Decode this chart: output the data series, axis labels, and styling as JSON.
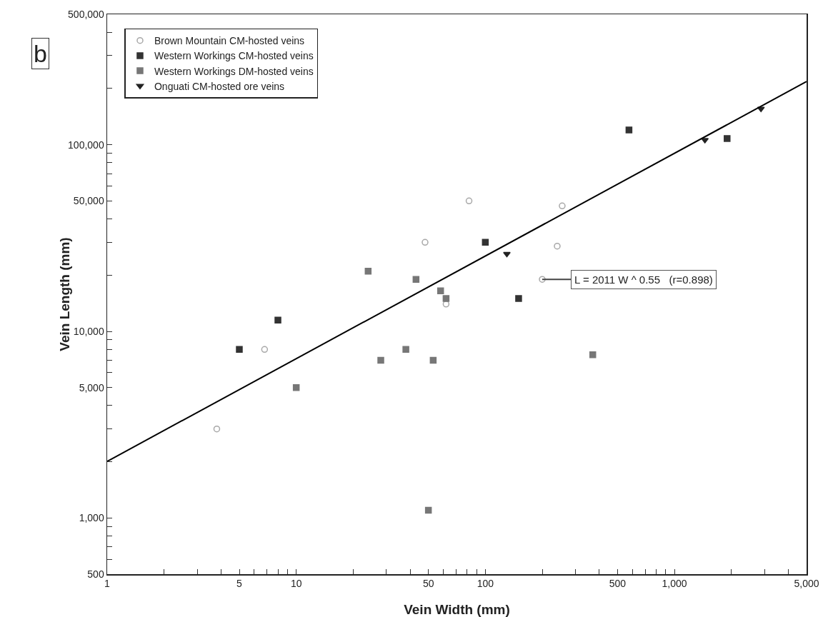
{
  "chart_data": {
    "type": "scatter",
    "xlabel": "Vein Width (mm)",
    "ylabel": "Vein Length (mm)",
    "log": "xy",
    "grid": false,
    "legend": "top left",
    "xlim": [
      1,
      5000
    ],
    "xticks": [
      1,
      {
        "value": 2,
        "label": null
      },
      {
        "value": 3,
        "label": null
      },
      {
        "value": 4,
        "label": null
      },
      {
        "value": 5,
        "label": "5"
      },
      {
        "value": 6,
        "label": null
      },
      {
        "value": 7,
        "label": null
      },
      {
        "value": 8,
        "label": null
      },
      {
        "value": 9,
        "label": null
      },
      {
        "value": 10,
        "label": "10"
      },
      {
        "value": 20,
        "label": null
      },
      {
        "value": 30,
        "label": null
      },
      {
        "value": 40,
        "label": null
      },
      {
        "value": 50,
        "label": "50"
      },
      {
        "value": 60,
        "label": null
      },
      {
        "value": 70,
        "label": null
      },
      {
        "value": 80,
        "label": null
      },
      {
        "value": 90,
        "label": null
      },
      {
        "value": 100,
        "label": "100"
      },
      {
        "value": 200,
        "label": null
      },
      {
        "value": 300,
        "label": null
      },
      {
        "value": 400,
        "label": null
      },
      {
        "value": 500,
        "label": "500"
      },
      {
        "value": 600,
        "label": null
      },
      {
        "value": 700,
        "label": null
      },
      {
        "value": 800,
        "label": null
      },
      {
        "value": 900,
        "label": null
      },
      {
        "value": 1000,
        "label": "1,000"
      },
      {
        "value": 2000,
        "label": null
      },
      {
        "value": 3000,
        "label": null
      },
      {
        "value": 4000,
        "label": null
      },
      {
        "value": 5000,
        "label": "5,000"
      }
    ],
    "ylim": [
      500,
      500000
    ],
    "yticks": [
      500,
      {
        "value": 600,
        "label": null
      },
      {
        "value": 700,
        "label": null
      },
      {
        "value": 800,
        "label": null
      },
      {
        "value": 900,
        "label": null
      },
      {
        "value": 1000,
        "label": "1,000"
      },
      {
        "value": 2000,
        "label": null
      },
      {
        "value": 3000,
        "label": null
      },
      {
        "value": 4000,
        "label": null
      },
      {
        "value": 5000,
        "label": "5,000"
      },
      {
        "value": 6000,
        "label": null
      },
      {
        "value": 7000,
        "label": null
      },
      {
        "value": 8000,
        "label": null
      },
      {
        "value": 9000,
        "label": null
      },
      {
        "value": 10000,
        "label": "10,000"
      },
      {
        "value": 20000,
        "label": null
      },
      {
        "value": 30000,
        "label": null
      },
      {
        "value": 40000,
        "label": null
      },
      {
        "value": 50000,
        "label": "50,000"
      },
      {
        "value": 60000,
        "label": null
      },
      {
        "value": 70000,
        "label": null
      },
      {
        "value": 80000,
        "label": null
      },
      {
        "value": 90000,
        "label": null
      },
      {
        "value": 100000,
        "label": "100,000"
      },
      {
        "value": 200000,
        "label": null
      },
      {
        "value": 300000,
        "label": null
      },
      {
        "value": 400000,
        "label": null
      },
      {
        "value": 500000,
        "label": "500,000"
      }
    ],
    "series": [
      {
        "name": "Brown Mountain CM-hosted veins",
        "color": "#a8a8a8",
        "marker": "circle",
        "x": [
          3.8,
          6.8,
          48,
          62,
          82,
          240,
          255,
          200
        ],
        "values": [
          3000,
          8000,
          30000,
          14000,
          50000,
          28600,
          47000,
          19000
        ]
      },
      {
        "name": "Western Workings CM-hosted veins",
        "color": "#333333",
        "marker": "square",
        "x": [
          5,
          8,
          100,
          150,
          575,
          1900
        ],
        "values": [
          8000,
          11500,
          30000,
          15000,
          120000,
          108000
        ]
      },
      {
        "name": "Western Workings DM-hosted veins",
        "color": "#777777",
        "marker": "square",
        "x": [
          10,
          24,
          28,
          38,
          43,
          53,
          58,
          62,
          50,
          370
        ],
        "values": [
          5000,
          21000,
          7000,
          8000,
          19000,
          7000,
          16500,
          15000,
          1100,
          7500
        ]
      },
      {
        "name": "Onguati CM-hosted ore veins",
        "color": "#222222",
        "marker": "triangle",
        "x": [
          130,
          1450,
          2870
        ],
        "values": [
          26000,
          106000,
          156000
        ]
      },
      {
        "type": "line",
        "color": "#000000",
        "marker": "none",
        "x": [
          1,
          5000
        ],
        "values": [
          2011,
          218000
        ]
      }
    ],
    "annotations": [
      {
        "text": "L = 2011 W ^ 0.55   (r=0.898)",
        "x": 200,
        "y": 19000
      },
      "b"
    ]
  }
}
